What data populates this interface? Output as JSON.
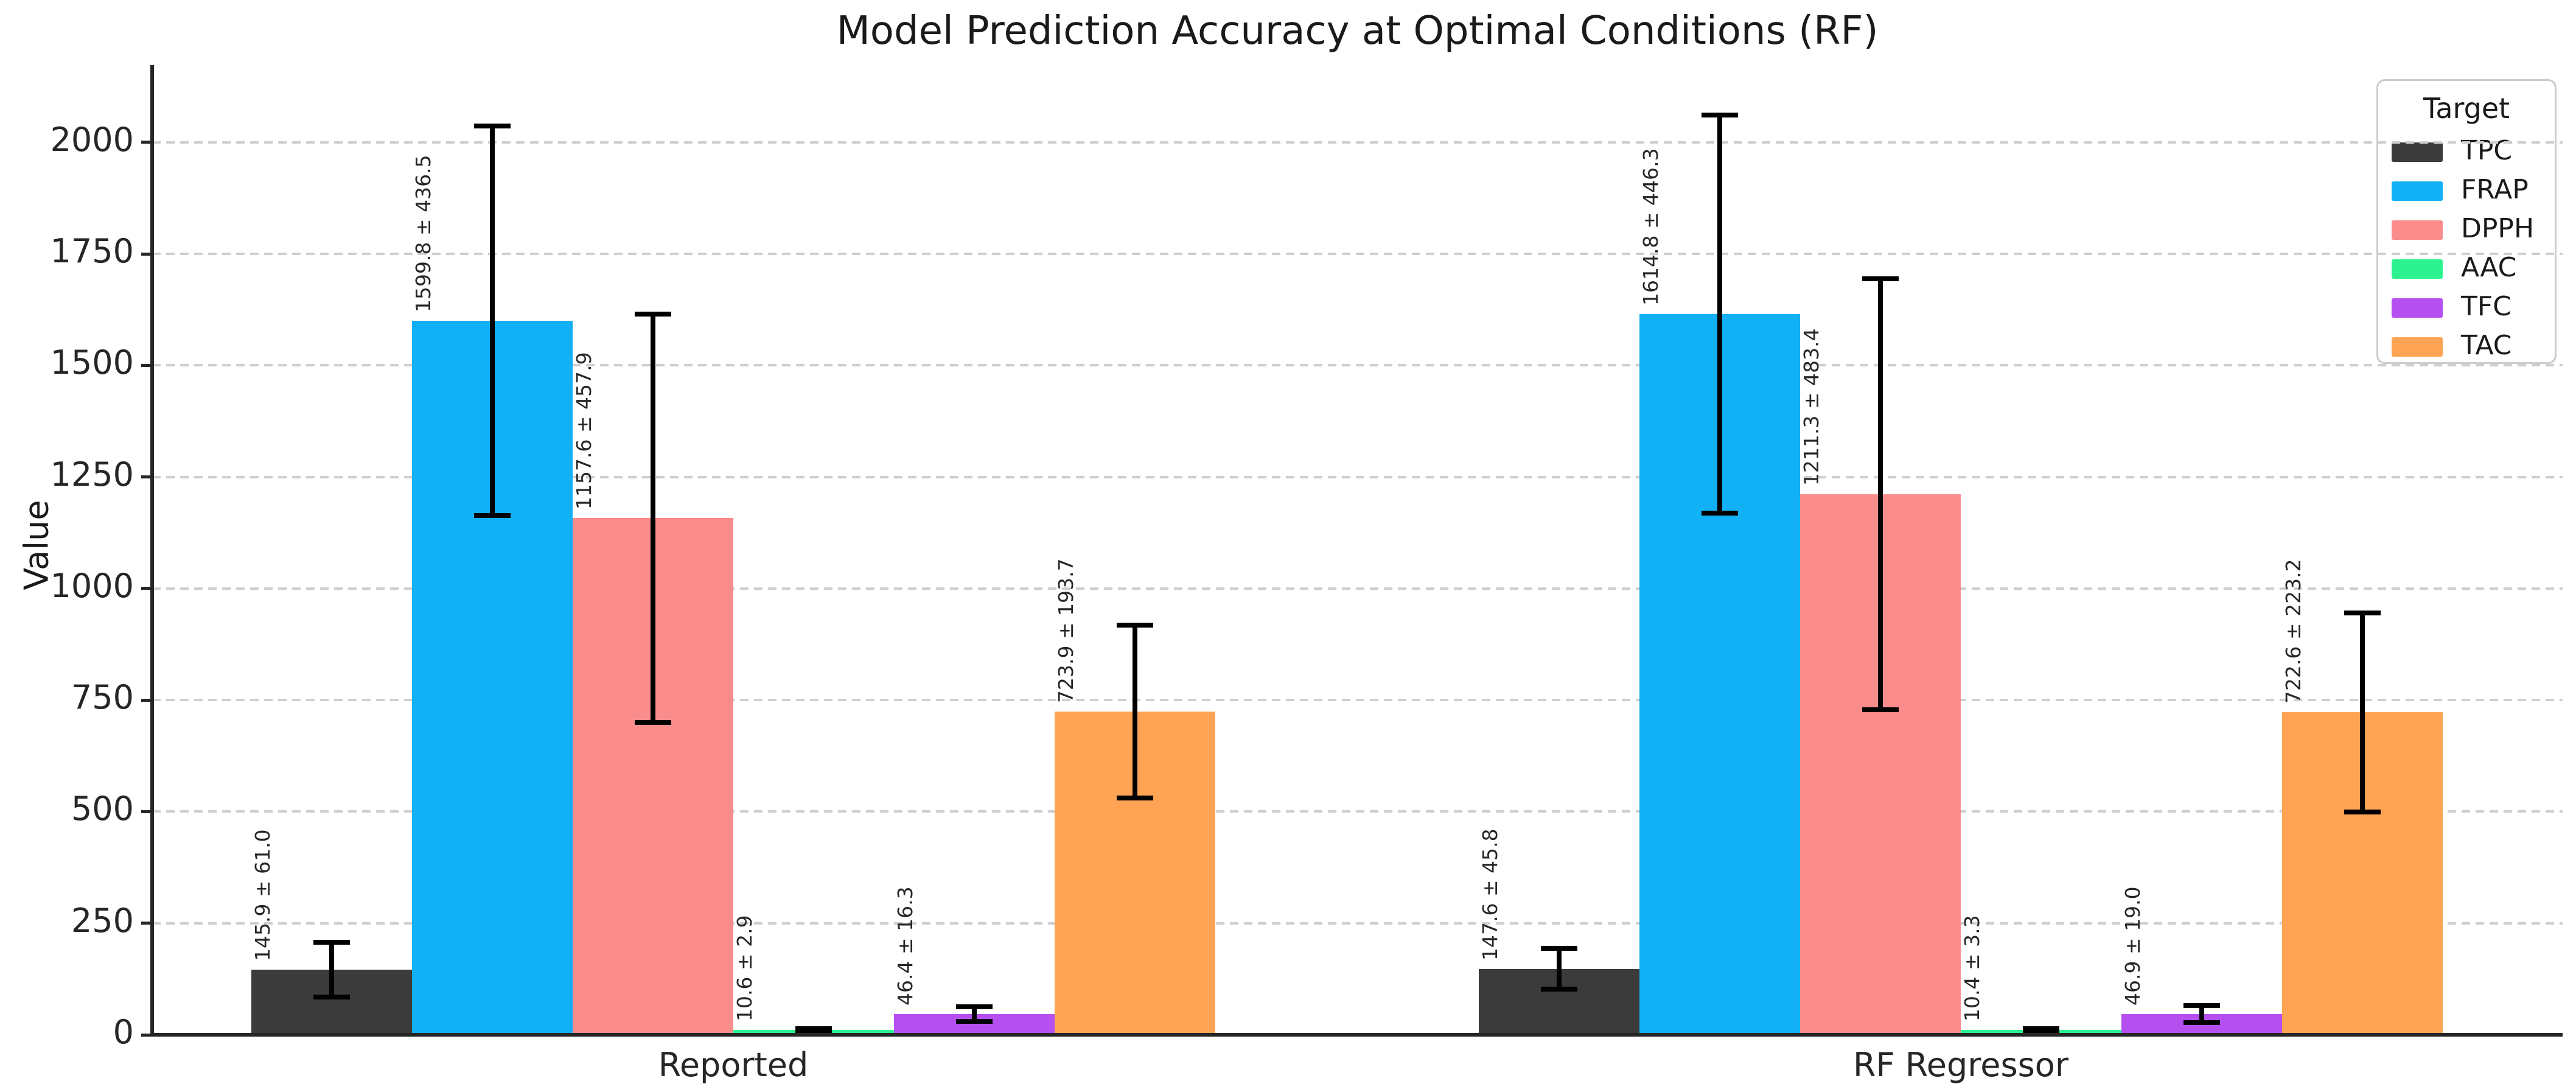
{
  "chart_data": {
    "type": "bar",
    "title": "Model Prediction Accuracy at Optimal Conditions (RF)",
    "ylabel": "Value",
    "xlabel": "",
    "categories": [
      "Reported",
      "RF Regressor"
    ],
    "yticks": [
      0,
      250,
      500,
      750,
      1000,
      1250,
      1500,
      1750,
      2000
    ],
    "ylim": [
      0,
      2173
    ],
    "grid": "horizontal-dashed",
    "legend_title": "Target",
    "legend_position": "upper right",
    "error_bar_color": "#000000",
    "series": [
      {
        "name": "TPC",
        "color": "#3b3b3b",
        "values": [
          145.9,
          147.6
        ],
        "errors": [
          61.0,
          45.8
        ],
        "labels": [
          "145.9 ± 61.0",
          "147.6 ± 45.8"
        ]
      },
      {
        "name": "FRAP",
        "color": "#12b0f5",
        "values": [
          1599.8,
          1614.8
        ],
        "errors": [
          436.5,
          446.3
        ],
        "labels": [
          "1599.8 ± 436.5",
          "1614.8 ± 446.3"
        ]
      },
      {
        "name": "DPPH",
        "color": "#fb8c8c",
        "values": [
          1157.6,
          1211.3
        ],
        "errors": [
          457.9,
          483.4
        ],
        "labels": [
          "1157.6 ± 457.9",
          "1211.3 ± 483.4"
        ]
      },
      {
        "name": "AAC",
        "color": "#2cf390",
        "values": [
          10.6,
          10.4
        ],
        "errors": [
          2.9,
          3.3
        ],
        "labels": [
          "10.6 ± 2.9",
          "10.4 ± 3.3"
        ]
      },
      {
        "name": "TFC",
        "color": "#b54ff0",
        "values": [
          46.4,
          46.9
        ],
        "errors": [
          16.3,
          19.0
        ],
        "labels": [
          "46.4 ± 16.3",
          "46.9 ± 19.0"
        ]
      },
      {
        "name": "TAC",
        "color": "#ffa454",
        "values": [
          723.9,
          722.6
        ],
        "errors": [
          193.7,
          223.2
        ],
        "labels": [
          "723.9 ± 193.7",
          "722.6 ± 223.2"
        ]
      }
    ]
  },
  "style": {
    "grid_color": "#cfcfcf",
    "spine_color": "#262626",
    "text_color": "#262626",
    "background": "#ffffff",
    "legend_border": "#cccccc"
  }
}
